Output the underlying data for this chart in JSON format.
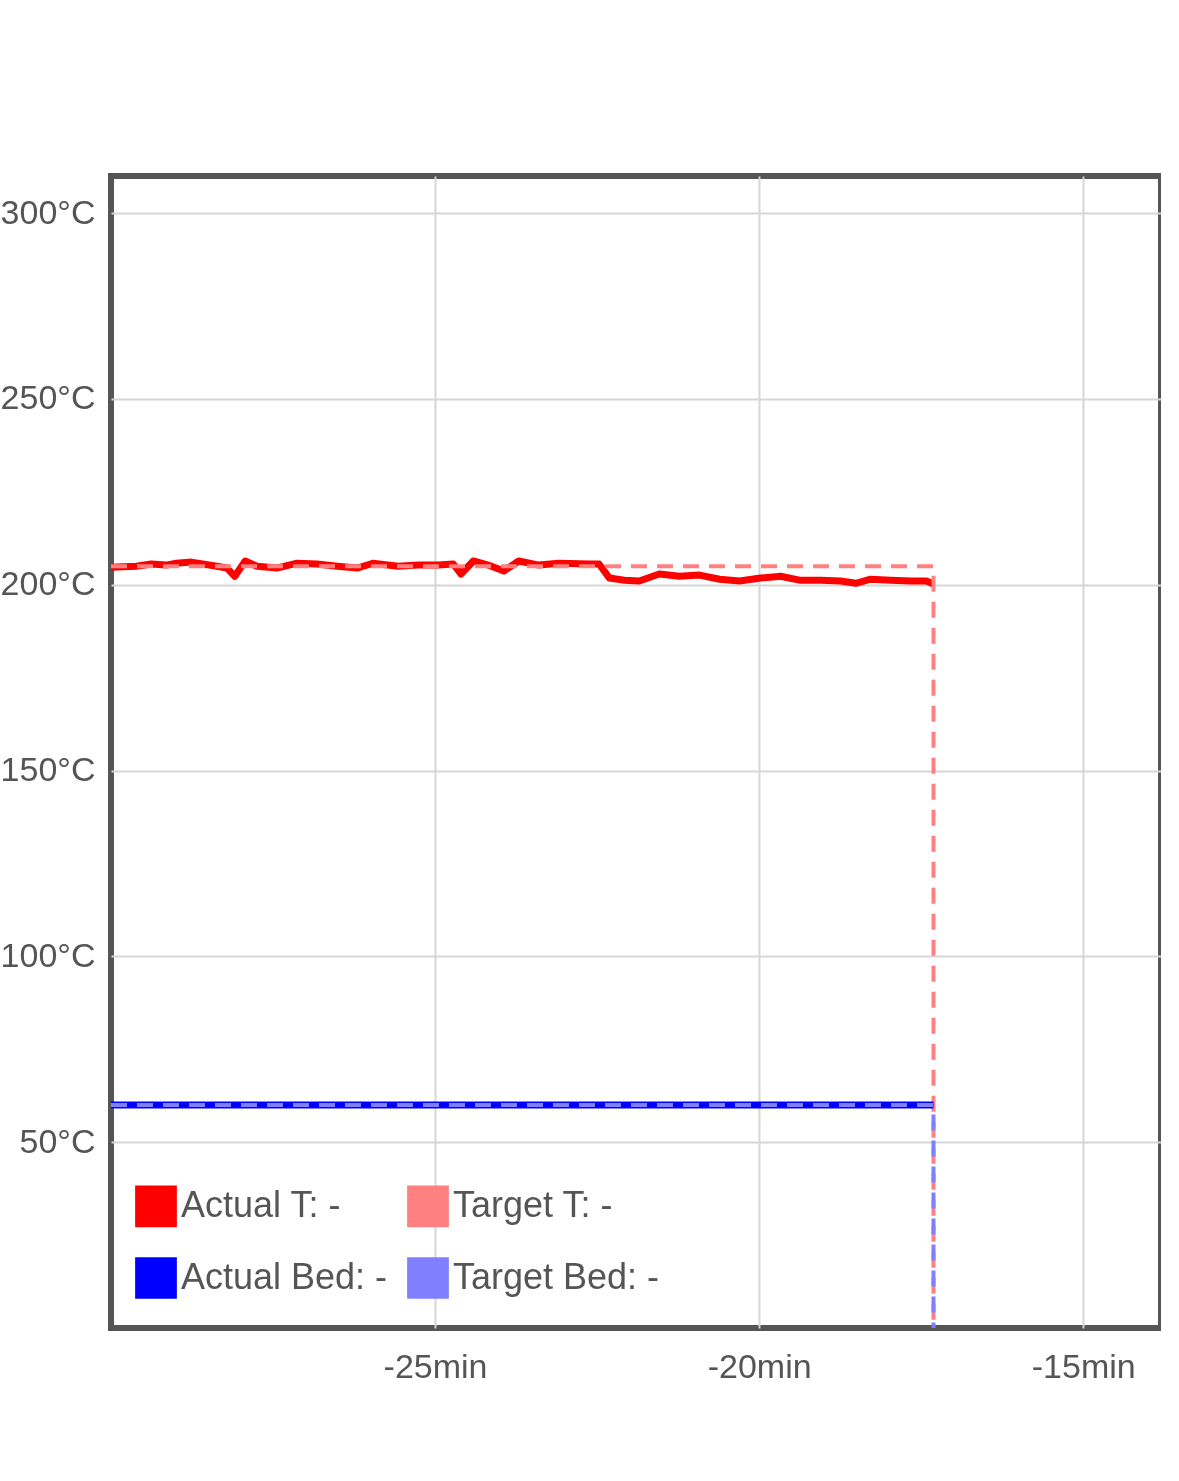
{
  "chart_data": {
    "type": "line",
    "xlim": [
      -30,
      -13.8
    ],
    "ylim": [
      0,
      310
    ],
    "xticks": [
      {
        "value": -25,
        "label": "-25min"
      },
      {
        "value": -20,
        "label": "-20min"
      },
      {
        "value": -15,
        "label": "-15min"
      }
    ],
    "yticks": [
      {
        "value": 50,
        "label": "50°C"
      },
      {
        "value": 100,
        "label": "100°C"
      },
      {
        "value": 150,
        "label": "150°C"
      },
      {
        "value": 200,
        "label": "200°C"
      },
      {
        "value": 250,
        "label": "250°C"
      },
      {
        "value": 300,
        "label": "300°C"
      }
    ],
    "grid": true,
    "legend": "bottom left",
    "marker": "none",
    "series": [
      {
        "name": "Actual T: -",
        "color": "#ff0000",
        "line_style": "solid",
        "x": [
          -30.0,
          -29.61,
          -29.38,
          -29.15,
          -28.99,
          -28.76,
          -28.37,
          -28.21,
          -28.09,
          -27.93,
          -27.75,
          -27.44,
          -27.13,
          -26.82,
          -26.51,
          -26.2,
          -25.96,
          -25.57,
          -25.26,
          -24.95,
          -24.72,
          -24.6,
          -24.41,
          -24.18,
          -23.94,
          -23.71,
          -23.4,
          -23.09,
          -22.62,
          -22.47,
          -22.31,
          -22.08,
          -21.85,
          -21.54,
          -21.23,
          -20.92,
          -20.61,
          -20.3,
          -19.98,
          -19.67,
          -19.36,
          -19.05,
          -18.74,
          -18.51,
          -18.28,
          -17.97,
          -17.66,
          -17.42,
          -17.31
        ],
        "values": [
          204.7,
          205.0,
          205.6,
          205.3,
          205.8,
          206.1,
          205.0,
          204.5,
          202.3,
          206.4,
          205.0,
          204.5,
          205.8,
          205.6,
          205.0,
          204.5,
          205.8,
          205.0,
          205.3,
          205.3,
          205.6,
          202.9,
          206.4,
          205.3,
          203.7,
          206.4,
          205.3,
          205.8,
          205.6,
          205.6,
          201.8,
          201.2,
          201.0,
          202.9,
          202.3,
          202.6,
          201.5,
          201.0,
          201.8,
          202.3,
          201.2,
          201.2,
          201.0,
          200.4,
          201.5,
          201.2,
          201.0,
          201.0,
          200.2
        ]
      },
      {
        "name": "Target T: -",
        "color": "#ff8080",
        "line_style": "dashed",
        "x": [
          -30.0,
          -17.31,
          -17.31
        ],
        "values": [
          205,
          205,
          0
        ]
      },
      {
        "name": "Actual Bed: -",
        "color": "#0000ff",
        "line_style": "solid",
        "x": [
          -30.0,
          -17.31
        ],
        "values": [
          60,
          60
        ]
      },
      {
        "name": "Target Bed: -",
        "color": "#8080ff",
        "line_style": "dashed",
        "x": [
          -30.0,
          -17.31,
          -17.31
        ],
        "values": [
          60,
          60,
          0
        ]
      }
    ]
  }
}
